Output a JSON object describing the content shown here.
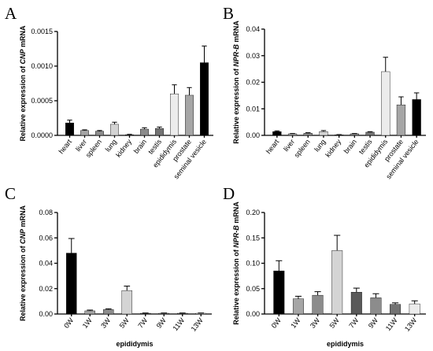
{
  "chart_data": [
    {
      "panel": "A",
      "type": "bar",
      "ylabel_prefix": "Relative expression of ",
      "ylabel_gene": "CNP",
      "ylabel_suffix": " mRNA",
      "xlabel": "",
      "ylim": [
        0,
        0.0015
      ],
      "yticks": [
        0,
        0.0005,
        0.001,
        0.0015
      ],
      "ytick_labels": [
        "0.0000",
        "0.0005",
        "0.0010",
        "0.0015"
      ],
      "categories": [
        "heart",
        "liver",
        "spleen",
        "lung",
        "kidney",
        "brain",
        "testis",
        "epididymis",
        "prostate",
        "seminal vesicle"
      ],
      "values": [
        0.00018,
        7e-05,
        6e-05,
        0.00016,
        1e-05,
        9e-05,
        0.0001,
        0.0006,
        0.00058,
        0.00105
      ],
      "errors": [
        4e-05,
        1e-05,
        1e-05,
        3e-05,
        5e-06,
        2e-05,
        2e-05,
        0.00013,
        0.00011,
        0.00024
      ],
      "colors": [
        "#000000",
        "#a6a6a6",
        "#8c8c8c",
        "#d4d4d4",
        "#595959",
        "#8c8c8c",
        "#737373",
        "#ececec",
        "#a6a6a6",
        "#000000"
      ]
    },
    {
      "panel": "B",
      "type": "bar",
      "ylabel_prefix": "Relative expression of ",
      "ylabel_gene": "NPR-B",
      "ylabel_suffix": " mRNA",
      "xlabel": "",
      "ylim": [
        0,
        0.04
      ],
      "yticks": [
        0,
        0.01,
        0.02,
        0.03,
        0.04
      ],
      "ytick_labels": [
        "0.00",
        "0.01",
        "0.02",
        "0.03",
        "0.04"
      ],
      "categories": [
        "heart",
        "liver",
        "spleen",
        "lung",
        "kidney",
        "brain",
        "testis",
        "epididymis",
        "prostate",
        "seminal vesicle"
      ],
      "values": [
        0.0014,
        0.0006,
        0.0008,
        0.0014,
        0.0002,
        0.0006,
        0.0012,
        0.024,
        0.0115,
        0.0135
      ],
      "errors": [
        0.0003,
        0.0001,
        0.0002,
        0.0004,
        0.0001,
        0.0001,
        0.0002,
        0.0054,
        0.003,
        0.0025
      ],
      "colors": [
        "#000000",
        "#a6a6a6",
        "#8c8c8c",
        "#d4d4d4",
        "#595959",
        "#8c8c8c",
        "#737373",
        "#ececec",
        "#a6a6a6",
        "#000000"
      ]
    },
    {
      "panel": "C",
      "type": "bar",
      "ylabel_prefix": "Relative expression of ",
      "ylabel_gene": "CNP",
      "ylabel_suffix": " mRNA",
      "xlabel": "epididymis",
      "ylim": [
        0,
        0.08
      ],
      "yticks": [
        0,
        0.02,
        0.04,
        0.06,
        0.08
      ],
      "ytick_labels": [
        "0.00",
        "0.02",
        "0.04",
        "0.06",
        "0.08"
      ],
      "categories": [
        "0W",
        "1W",
        "3W",
        "5W",
        "7W",
        "9W",
        "11W",
        "13W"
      ],
      "values": [
        0.048,
        0.0025,
        0.0035,
        0.0185,
        0.0006,
        0.0006,
        0.0006,
        0.0006
      ],
      "errors": [
        0.0115,
        0.0006,
        0.0006,
        0.0035,
        0.0002,
        0.0002,
        0.0002,
        0.0002
      ],
      "colors": [
        "#000000",
        "#a6a6a6",
        "#8c8c8c",
        "#d4d4d4",
        "#595959",
        "#8c8c8c",
        "#737373",
        "#ececec"
      ]
    },
    {
      "panel": "D",
      "type": "bar",
      "ylabel_prefix": "Relative expression of ",
      "ylabel_gene": "NPR-B",
      "ylabel_suffix": " mRNA",
      "xlabel": "epididymis",
      "ylim": [
        0,
        0.2
      ],
      "yticks": [
        0,
        0.05,
        0.1,
        0.15,
        0.2
      ],
      "ytick_labels": [
        "0.00",
        "0.05",
        "0.10",
        "0.15",
        "0.20"
      ],
      "categories": [
        "0W",
        "1W",
        "3W",
        "5W",
        "7W",
        "9W",
        "11W",
        "13W"
      ],
      "values": [
        0.085,
        0.03,
        0.037,
        0.125,
        0.043,
        0.032,
        0.019,
        0.02
      ],
      "errors": [
        0.02,
        0.005,
        0.007,
        0.03,
        0.008,
        0.008,
        0.003,
        0.006
      ],
      "colors": [
        "#000000",
        "#a6a6a6",
        "#8c8c8c",
        "#d4d4d4",
        "#595959",
        "#8c8c8c",
        "#737373",
        "#ececec"
      ]
    }
  ]
}
